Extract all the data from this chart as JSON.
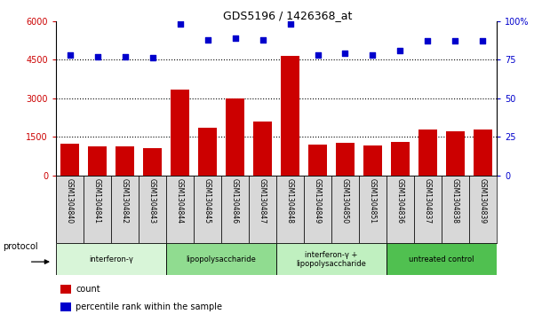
{
  "title": "GDS5196 / 1426368_at",
  "samples": [
    "GSM1304840",
    "GSM1304841",
    "GSM1304842",
    "GSM1304843",
    "GSM1304844",
    "GSM1304845",
    "GSM1304846",
    "GSM1304847",
    "GSM1304848",
    "GSM1304849",
    "GSM1304850",
    "GSM1304851",
    "GSM1304836",
    "GSM1304837",
    "GSM1304838",
    "GSM1304839"
  ],
  "counts": [
    1220,
    1140,
    1120,
    1050,
    3350,
    1870,
    2980,
    2080,
    4650,
    1210,
    1270,
    1150,
    1300,
    1770,
    1720,
    1780
  ],
  "percentile_ranks": [
    78,
    77,
    77,
    76,
    98,
    88,
    89,
    88,
    98,
    78,
    79,
    78,
    81,
    87,
    87,
    87
  ],
  "groups": [
    {
      "label": "interferon-γ",
      "start": 0,
      "end": 4,
      "color": "#d8f5d8"
    },
    {
      "label": "lipopolysaccharide",
      "start": 4,
      "end": 8,
      "color": "#90dc90"
    },
    {
      "label": "interferon-γ +\nlipopolysaccharide",
      "start": 8,
      "end": 12,
      "color": "#c0f0c0"
    },
    {
      "label": "untreated control",
      "start": 12,
      "end": 16,
      "color": "#50c050"
    }
  ],
  "ylim_left": [
    0,
    6000
  ],
  "ylim_right": [
    0,
    100
  ],
  "yticks_left": [
    0,
    1500,
    3000,
    4500,
    6000
  ],
  "yticks_right": [
    0,
    25,
    50,
    75,
    100
  ],
  "bar_color": "#cc0000",
  "dot_color": "#0000cc",
  "title_color": "#000000",
  "tick_bg_color": "#d8d8d8",
  "grid_yticks": [
    1500,
    3000,
    4500
  ]
}
